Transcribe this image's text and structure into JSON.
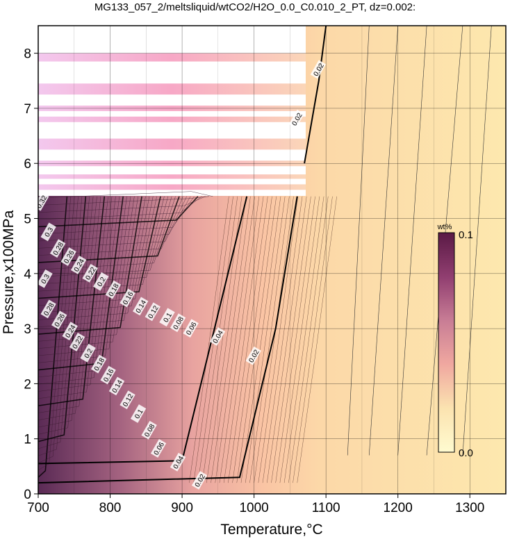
{
  "chart_data": {
    "type": "heatmap",
    "title": "MG133_057_2/meltsliquid/wtCO2/H2O_0.0_C0.010_2_PT, dz=0.002:",
    "xlabel": "Temperature,°C",
    "ylabel": "Pressure,x100MPa",
    "xlim": [
      700,
      1350
    ],
    "ylim": [
      0,
      8.5
    ],
    "xticks": [
      "700",
      "800",
      "900",
      "1000",
      "1100",
      "1200",
      "1300"
    ],
    "yticks": [
      "0",
      "1",
      "2",
      "3",
      "4",
      "5",
      "6",
      "7",
      "8"
    ],
    "grid": true,
    "colorbar": {
      "unit": "wt%",
      "min_label": "0.0",
      "max_label": "0.1",
      "min": 0.0,
      "max": 0.1,
      "colors": [
        "#fffbd0",
        "#fbe3b0",
        "#f0a8a0",
        "#c87d95",
        "#903e70",
        "#5a1a45"
      ]
    },
    "contour_labels": [
      {
        "text": "0.32",
        "x": 705,
        "y": 5.3
      },
      {
        "text": "0.3",
        "x": 715,
        "y": 4.75
      },
      {
        "text": "0.28",
        "x": 728,
        "y": 4.45
      },
      {
        "text": "0.26",
        "x": 743,
        "y": 4.3
      },
      {
        "text": "0.24",
        "x": 757,
        "y": 4.15
      },
      {
        "text": "0.22",
        "x": 773,
        "y": 4.0
      },
      {
        "text": "0.2",
        "x": 788,
        "y": 3.85
      },
      {
        "text": "0.18",
        "x": 805,
        "y": 3.7
      },
      {
        "text": "0.16",
        "x": 825,
        "y": 3.55
      },
      {
        "text": "0.14",
        "x": 843,
        "y": 3.4
      },
      {
        "text": "0.12",
        "x": 860,
        "y": 3.3
      },
      {
        "text": "0.1",
        "x": 880,
        "y": 3.2
      },
      {
        "text": "0.08",
        "x": 895,
        "y": 3.1
      },
      {
        "text": "0.06",
        "x": 913,
        "y": 3.0
      },
      {
        "text": "0.3",
        "x": 710,
        "y": 3.9
      },
      {
        "text": "0.28",
        "x": 715,
        "y": 3.35
      },
      {
        "text": "0.26",
        "x": 730,
        "y": 3.15
      },
      {
        "text": "0.24",
        "x": 745,
        "y": 2.95
      },
      {
        "text": "0.22",
        "x": 755,
        "y": 2.75
      },
      {
        "text": "0.2",
        "x": 770,
        "y": 2.55
      },
      {
        "text": "0.18",
        "x": 785,
        "y": 2.35
      },
      {
        "text": "0.16",
        "x": 798,
        "y": 2.15
      },
      {
        "text": "0.14",
        "x": 810,
        "y": 1.95
      },
      {
        "text": "0.12",
        "x": 825,
        "y": 1.7
      },
      {
        "text": "0.1",
        "x": 840,
        "y": 1.45
      },
      {
        "text": "0.08",
        "x": 855,
        "y": 1.15
      },
      {
        "text": "0.06",
        "x": 868,
        "y": 0.82
      },
      {
        "text": "0.04",
        "x": 895,
        "y": 0.57
      },
      {
        "text": "0.02",
        "x": 925,
        "y": 0.24
      },
      {
        "text": "0.04",
        "x": 950,
        "y": 2.85
      },
      {
        "text": "0.02",
        "x": 1000,
        "y": 2.5
      },
      {
        "text": "0.02",
        "x": 1060,
        "y": 6.8
      },
      {
        "text": "0.02",
        "x": 1090,
        "y": 7.7
      }
    ]
  }
}
